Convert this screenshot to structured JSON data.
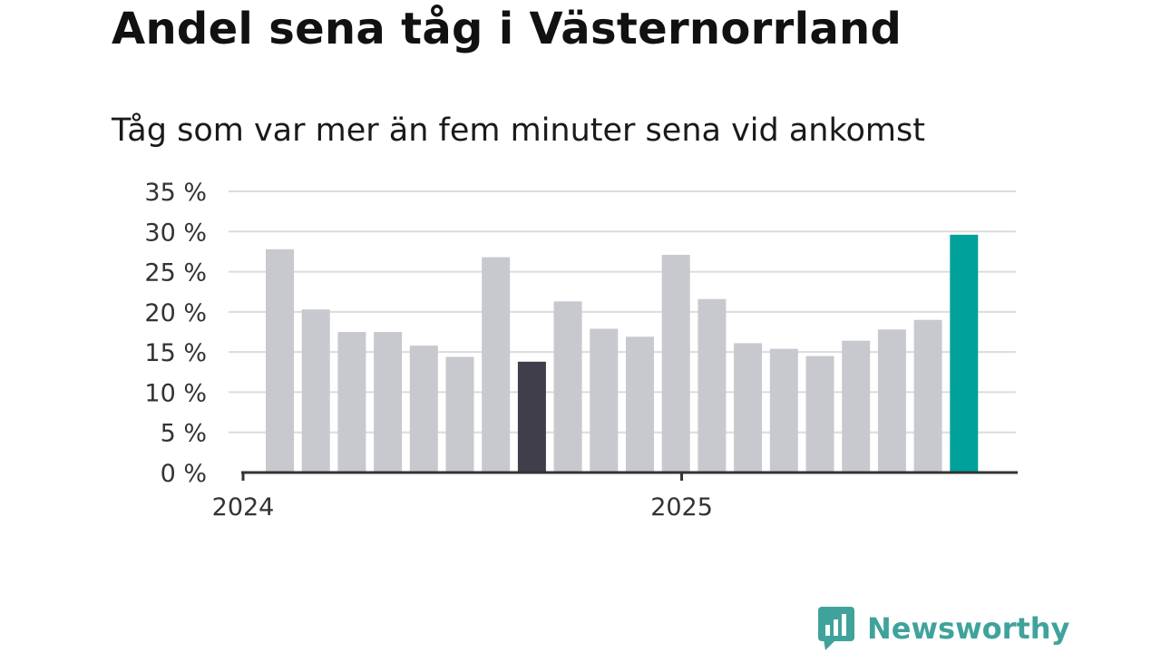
{
  "chart_data": {
    "type": "bar",
    "title": "Andel sena tåg i Västernorrland",
    "subtitle": "Tåg som var mer än fem minuter sena vid ankomst",
    "xlabel": "",
    "ylabel": "",
    "ylim": [
      0,
      35
    ],
    "yticks": [
      0,
      5,
      10,
      15,
      20,
      25,
      30,
      35
    ],
    "ytick_labels": [
      "0 %",
      "5 %",
      "10 %",
      "15 %",
      "20 %",
      "25 %",
      "30 %",
      "35 %"
    ],
    "x_tick_labels": [
      {
        "label": "2024",
        "bar_index": 0
      },
      {
        "label": "2025",
        "bar_index": 12
      }
    ],
    "grid": "horizontal",
    "values": [
      27.8,
      20.3,
      17.5,
      17.5,
      15.8,
      14.4,
      26.8,
      13.8,
      21.3,
      17.9,
      16.9,
      27.1,
      21.6,
      16.1,
      15.4,
      14.5,
      16.4,
      17.8,
      19.0,
      29.6
    ],
    "bar_colors": [
      "#c8c8cf",
      "#c8c8cf",
      "#c8c8cf",
      "#c8c8cf",
      "#c8c8cf",
      "#c8c8cf",
      "#c8c8cf",
      "#3f3e4a",
      "#c8c8cf",
      "#c8c8cf",
      "#c8c8cf",
      "#c8c8cf",
      "#c8c8cf",
      "#c8c8cf",
      "#c8c8cf",
      "#c8c8cf",
      "#c8c8cf",
      "#c8c8cf",
      "#c8c8cf",
      "#00a19a"
    ]
  },
  "colors": {
    "bar_default": "#c8c8cf",
    "bar_highlight_dark": "#3f3e4a",
    "bar_highlight_current": "#00a19a",
    "gridline": "#dcdcdc",
    "axis": "#333333",
    "brand": "#3fa39b"
  },
  "brand": {
    "name": "Newsworthy",
    "icon": "bar-chart-speech-bubble-icon"
  }
}
